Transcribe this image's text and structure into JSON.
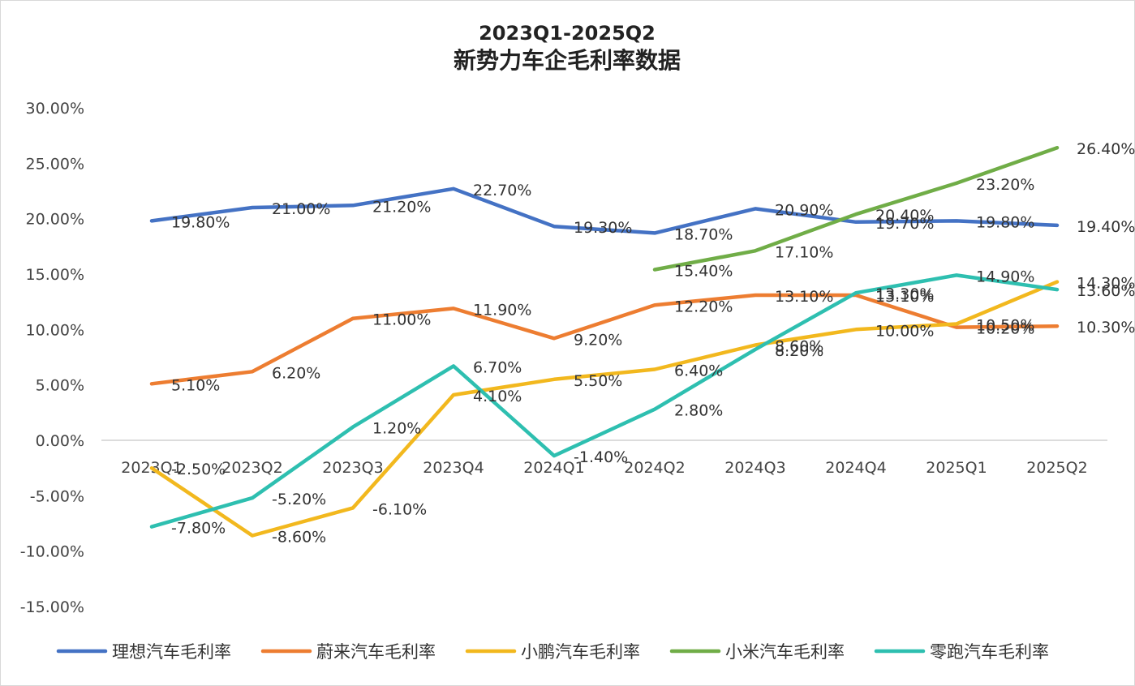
{
  "chart_data": {
    "type": "line",
    "title_lines": [
      "2023Q1-2025Q2",
      "新势力车企毛利率数据"
    ],
    "xlabel": "",
    "ylabel": "",
    "categories": [
      "2023Q1",
      "2023Q2",
      "2023Q3",
      "2023Q4",
      "2024Q1",
      "2024Q2",
      "2024Q3",
      "2024Q4",
      "2025Q1",
      "2025Q2"
    ],
    "ylim": [
      -15,
      30
    ],
    "yticks": [
      30,
      25,
      20,
      15,
      10,
      5,
      0,
      -5,
      -10,
      -15
    ],
    "ytick_labels": [
      "30.00%",
      "25.00%",
      "20.00%",
      "15.00%",
      "10.00%",
      "5.00%",
      "0.00%",
      "-5.00%",
      "-10.00%",
      "-15.00%"
    ],
    "grid": false,
    "legend_position": "bottom",
    "series": [
      {
        "name": "理想汽车毛利率",
        "color": "#4472C4",
        "values": [
          19.8,
          21.0,
          21.2,
          22.7,
          19.3,
          18.7,
          20.9,
          19.7,
          19.8,
          19.4
        ],
        "labels": [
          "19.80%",
          "21.00%",
          "21.20%",
          "22.70%",
          "19.30%",
          "18.70%",
          "20.90%",
          "19.70%",
          "19.80%",
          "19.40%"
        ]
      },
      {
        "name": "蔚来汽车毛利率",
        "color": "#ED7D31",
        "values": [
          5.1,
          6.2,
          11.0,
          11.9,
          9.2,
          12.2,
          13.1,
          13.1,
          10.2,
          10.3
        ],
        "labels": [
          "5.10%",
          "6.20%",
          "11.00%",
          "11.90%",
          "9.20%",
          "12.20%",
          "13.10%",
          "13.10%",
          "10.20%",
          "10.30%"
        ]
      },
      {
        "name": "小鹏汽车毛利率",
        "color": "#F2B81E",
        "values": [
          -2.5,
          -8.6,
          -6.1,
          4.1,
          5.5,
          6.4,
          8.6,
          10.0,
          10.5,
          14.3
        ],
        "labels": [
          "-2.50%",
          "-8.60%",
          "-6.10%",
          "4.10%",
          "5.50%",
          "6.40%",
          "8.60%",
          "10.00%",
          "10.50%",
          "14.30%"
        ]
      },
      {
        "name": "小米汽车毛利率",
        "color": "#70AD47",
        "values": [
          null,
          null,
          null,
          null,
          null,
          15.4,
          17.1,
          20.4,
          23.2,
          26.4
        ],
        "labels": [
          null,
          null,
          null,
          null,
          null,
          "15.40%",
          "17.10%",
          "20.40%",
          "23.20%",
          "26.40%"
        ]
      },
      {
        "name": "零跑汽车毛利率",
        "color": "#2EBFB0",
        "values": [
          -7.8,
          -5.2,
          1.2,
          6.7,
          -1.4,
          2.8,
          8.2,
          13.3,
          14.9,
          13.6
        ],
        "labels": [
          "-7.80%",
          "-5.20%",
          "1.20%",
          "6.70%",
          "-1.40%",
          "2.80%",
          "8.20%",
          "13.30%",
          "14.90%",
          "13.60%"
        ]
      }
    ]
  }
}
